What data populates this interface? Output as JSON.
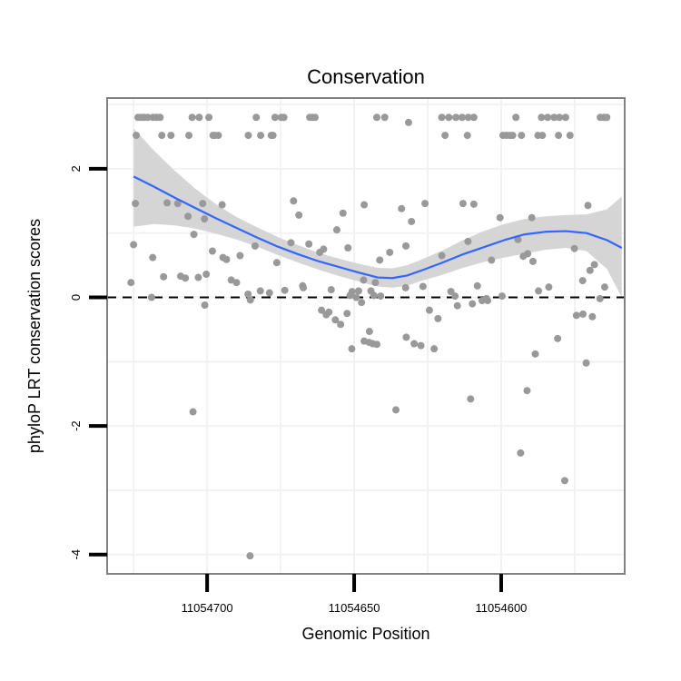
{
  "chart_data": {
    "type": "scatter",
    "title": "Conservation",
    "xlabel": "Genomic Position",
    "ylabel": "phyloP LRT conservation scores",
    "xlim": [
      11054734.0,
      11054558.0
    ],
    "ylim": [
      -4.3,
      3.1
    ],
    "x_reversed": true,
    "x_ticks": [
      11054700,
      11054650,
      11054600
    ],
    "x_tick_labels": [
      "11054700",
      "11054650",
      "11054600"
    ],
    "y_ticks": [
      2,
      0,
      -2,
      -4
    ],
    "y_tick_labels": [
      "2",
      "0",
      "-2",
      "-4"
    ],
    "grid": true,
    "reference_line": {
      "y": 0,
      "style": "dashed",
      "color": "#000000"
    },
    "point_color": "#999999",
    "smooth_color": "#3366FF",
    "ribbon_color": "#D3D3D3",
    "points": [
      [
        11054723.5,
        2.8
      ],
      [
        11054722.3,
        2.8
      ],
      [
        11054721.4,
        2.8
      ],
      [
        11054720.2,
        2.8
      ],
      [
        11054718.4,
        2.8
      ],
      [
        11054717.2,
        2.8
      ],
      [
        11054716.0,
        2.8
      ],
      [
        11054705.1,
        2.8
      ],
      [
        11054702.7,
        2.8
      ],
      [
        11054699.4,
        2.8
      ],
      [
        11054683.3,
        2.8
      ],
      [
        11054676.9,
        2.8
      ],
      [
        11054674.8,
        2.8
      ],
      [
        11054673.9,
        2.8
      ],
      [
        11054665.1,
        2.8
      ],
      [
        11054664.2,
        2.8
      ],
      [
        11054663.3,
        2.8
      ],
      [
        11054642.3,
        2.8
      ],
      [
        11054639.6,
        2.8
      ],
      [
        11054620.2,
        2.8
      ],
      [
        11054617.8,
        2.8
      ],
      [
        11054615.4,
        2.8
      ],
      [
        11054613.3,
        2.8
      ],
      [
        11054611.2,
        2.8
      ],
      [
        11054609.3,
        2.8
      ],
      [
        11054595.0,
        2.8
      ],
      [
        11054586.3,
        2.8
      ],
      [
        11054584.2,
        2.8
      ],
      [
        11054582.0,
        2.8
      ],
      [
        11054580.2,
        2.8
      ],
      [
        11054578.1,
        2.8
      ],
      [
        11054566.3,
        2.8
      ],
      [
        11054565.0,
        2.8
      ],
      [
        11054564.1,
        2.8
      ],
      [
        11054724.1,
        2.52
      ],
      [
        11054715.4,
        2.52
      ],
      [
        11054712.3,
        2.52
      ],
      [
        11054706.2,
        2.52
      ],
      [
        11054698.0,
        2.52
      ],
      [
        11054697.4,
        2.52
      ],
      [
        11054696.2,
        2.52
      ],
      [
        11054686.0,
        2.52
      ],
      [
        11054681.8,
        2.52
      ],
      [
        11054678.2,
        2.52
      ],
      [
        11054677.6,
        2.52
      ],
      [
        11054619.1,
        2.52
      ],
      [
        11054611.5,
        2.52
      ],
      [
        11054599.4,
        2.52
      ],
      [
        11054598.2,
        2.52
      ],
      [
        11054597.0,
        2.52
      ],
      [
        11054596.1,
        2.52
      ],
      [
        11054593.1,
        2.52
      ],
      [
        11054587.5,
        2.52
      ],
      [
        11054586.0,
        2.52
      ],
      [
        11054580.5,
        2.52
      ],
      [
        11054576.6,
        2.52
      ],
      [
        11054631.5,
        2.72
      ],
      [
        11054724.4,
        1.46
      ],
      [
        11054713.6,
        1.47
      ],
      [
        11054710.0,
        1.46
      ],
      [
        11054701.5,
        1.46
      ],
      [
        11054694.9,
        1.44
      ],
      [
        11054670.6,
        1.5
      ],
      [
        11054646.6,
        1.44
      ],
      [
        11054633.9,
        1.38
      ],
      [
        11054625.9,
        1.46
      ],
      [
        11054613.0,
        1.46
      ],
      [
        11054609.3,
        1.45
      ],
      [
        11054600.4,
        1.24
      ],
      [
        11054570.5,
        1.43
      ],
      [
        11054706.5,
        1.26
      ],
      [
        11054700.9,
        1.22
      ],
      [
        11054668.8,
        1.28
      ],
      [
        11054653.8,
        1.31
      ],
      [
        11054630.5,
        1.18
      ],
      [
        11054589.6,
        1.24
      ],
      [
        11054655.9,
        1.05
      ],
      [
        11054725.0,
        0.82
      ],
      [
        11054718.5,
        0.62
      ],
      [
        11054709.0,
        0.33
      ],
      [
        11054704.5,
        0.98
      ],
      [
        11054703.0,
        0.31
      ],
      [
        11054698.2,
        0.72
      ],
      [
        11054694.6,
        0.62
      ],
      [
        11054693.4,
        0.59
      ],
      [
        11054691.8,
        0.27
      ],
      [
        11054688.8,
        0.65
      ],
      [
        11054683.7,
        0.8
      ],
      [
        11054678.8,
        0.07
      ],
      [
        11054676.3,
        0.54
      ],
      [
        11054671.5,
        0.85
      ],
      [
        11054665.4,
        0.83
      ],
      [
        11054661.7,
        0.7
      ],
      [
        11054660.4,
        0.75
      ],
      [
        11054652.1,
        0.77
      ],
      [
        11054642.8,
        0.23
      ],
      [
        11054641.3,
        0.58
      ],
      [
        11054637.9,
        0.7
      ],
      [
        11054632.4,
        0.8
      ],
      [
        11054620.2,
        0.65
      ],
      [
        11054611.3,
        0.87
      ],
      [
        11054603.3,
        0.58
      ],
      [
        11054592.5,
        0.64
      ],
      [
        11054591.0,
        0.68
      ],
      [
        11054589.2,
        0.56
      ],
      [
        11054575.1,
        0.76
      ],
      [
        11054572.3,
        0.26
      ],
      [
        11054569.8,
        0.42
      ],
      [
        11054568.3,
        0.51
      ],
      [
        11054594.3,
        0.9
      ],
      [
        11054626.6,
        0.17
      ],
      [
        11054608.1,
        0.18
      ],
      [
        11054667.3,
        0.15
      ],
      [
        11054725.9,
        0.23
      ],
      [
        11054714.8,
        0.32
      ],
      [
        11054707.4,
        0.3
      ],
      [
        11054700.3,
        0.36
      ],
      [
        11054690.0,
        0.23
      ],
      [
        11054681.9,
        0.1
      ],
      [
        11054686.1,
        0.05
      ],
      [
        11054667.5,
        0.18
      ],
      [
        11054657.8,
        0.12
      ],
      [
        11054651.4,
        0.03
      ],
      [
        11054650.7,
        0.09
      ],
      [
        11054646.8,
        0.27
      ],
      [
        11054644.3,
        0.1
      ],
      [
        11054643.3,
        0.03
      ],
      [
        11054641.0,
        0.02
      ],
      [
        11054617.1,
        0.09
      ],
      [
        11054587.3,
        0.1
      ],
      [
        11054583.8,
        0.16
      ],
      [
        11054564.8,
        0.16
      ],
      [
        11054718.9,
        0.0
      ],
      [
        11054648.5,
        0.1
      ],
      [
        11054673.6,
        0.11
      ],
      [
        11054604.6,
        -0.05
      ],
      [
        11054700.8,
        -0.12
      ],
      [
        11054685.3,
        -0.04
      ],
      [
        11054661.1,
        -0.2
      ],
      [
        11054659.5,
        -0.27
      ],
      [
        11054658.6,
        -0.23
      ],
      [
        11054656.4,
        -0.35
      ],
      [
        11054654.6,
        -0.42
      ],
      [
        11054652.4,
        -0.25
      ],
      [
        11054649.3,
        0.0
      ],
      [
        11054632.5,
        0.15
      ],
      [
        11054624.4,
        -0.2
      ],
      [
        11054621.5,
        -0.33
      ],
      [
        11054614.9,
        -0.13
      ],
      [
        11054609.8,
        -0.1
      ],
      [
        11054606.5,
        -0.05
      ],
      [
        11054574.4,
        -0.28
      ],
      [
        11054572.2,
        -0.26
      ],
      [
        11054569.0,
        -0.3
      ],
      [
        11054566.4,
        -0.02
      ],
      [
        11054647.5,
        -0.08
      ],
      [
        11054605.0,
        -0.02
      ],
      [
        11054615.7,
        0.02
      ],
      [
        11054599.7,
        0.02
      ],
      [
        11054644.8,
        -0.53
      ],
      [
        11054632.3,
        -0.62
      ],
      [
        11054629.6,
        -0.72
      ],
      [
        11054622.8,
        -0.8
      ],
      [
        11054650.8,
        -0.8
      ],
      [
        11054646.6,
        -0.68
      ],
      [
        11054644.9,
        -0.7
      ],
      [
        11054643.7,
        -0.72
      ],
      [
        11054642.3,
        -0.73
      ],
      [
        11054627.3,
        -0.75
      ],
      [
        11054580.8,
        -0.64
      ],
      [
        11054588.4,
        -0.88
      ],
      [
        11054704.8,
        -1.78
      ],
      [
        11054635.8,
        -1.75
      ],
      [
        11054610.4,
        -1.58
      ],
      [
        11054591.2,
        -1.45
      ],
      [
        11054593.4,
        -2.42
      ],
      [
        11054578.4,
        -2.85
      ],
      [
        11054685.4,
        -4.02
      ],
      [
        11054571.1,
        -1.02
      ]
    ],
    "smooth_line": [
      [
        11054725.0,
        1.88
      ],
      [
        11054718.0,
        1.72
      ],
      [
        11054711.0,
        1.55
      ],
      [
        11054704.0,
        1.39
      ],
      [
        11054697.0,
        1.23
      ],
      [
        11054690.0,
        1.08
      ],
      [
        11054683.0,
        0.93
      ],
      [
        11054676.0,
        0.79
      ],
      [
        11054669.0,
        0.67
      ],
      [
        11054662.0,
        0.56
      ],
      [
        11054655.0,
        0.47
      ],
      [
        11054648.0,
        0.38
      ],
      [
        11054642.0,
        0.31
      ],
      [
        11054637.0,
        0.3
      ],
      [
        11054632.0,
        0.34
      ],
      [
        11054627.0,
        0.42
      ],
      [
        11054620.0,
        0.54
      ],
      [
        11054613.0,
        0.67
      ],
      [
        11054606.0,
        0.78
      ],
      [
        11054599.0,
        0.89
      ],
      [
        11054592.0,
        0.98
      ],
      [
        11054585.0,
        1.02
      ],
      [
        11054578.0,
        1.03
      ],
      [
        11054571.0,
        1.0
      ],
      [
        11054564.0,
        0.89
      ],
      [
        11054559.0,
        0.77
      ]
    ],
    "ribbon_upper": [
      [
        11054725.0,
        2.63
      ],
      [
        11054718.0,
        2.28
      ],
      [
        11054711.0,
        1.97
      ],
      [
        11054704.0,
        1.69
      ],
      [
        11054697.0,
        1.45
      ],
      [
        11054690.0,
        1.25
      ],
      [
        11054683.0,
        1.09
      ],
      [
        11054676.0,
        0.94
      ],
      [
        11054669.0,
        0.81
      ],
      [
        11054662.0,
        0.69
      ],
      [
        11054655.0,
        0.6
      ],
      [
        11054648.0,
        0.52
      ],
      [
        11054642.0,
        0.46
      ],
      [
        11054637.0,
        0.45
      ],
      [
        11054632.0,
        0.5
      ],
      [
        11054627.0,
        0.59
      ],
      [
        11054620.0,
        0.73
      ],
      [
        11054613.0,
        0.89
      ],
      [
        11054606.0,
        1.03
      ],
      [
        11054599.0,
        1.14
      ],
      [
        11054592.0,
        1.22
      ],
      [
        11054585.0,
        1.26
      ],
      [
        11054578.0,
        1.28
      ],
      [
        11054571.0,
        1.29
      ],
      [
        11054564.0,
        1.37
      ],
      [
        11054559.0,
        1.57
      ]
    ],
    "ribbon_lower": [
      [
        11054725.0,
        1.1
      ],
      [
        11054718.0,
        1.14
      ],
      [
        11054711.0,
        1.12
      ],
      [
        11054704.0,
        1.07
      ],
      [
        11054697.0,
        0.99
      ],
      [
        11054690.0,
        0.9
      ],
      [
        11054683.0,
        0.79
      ],
      [
        11054676.0,
        0.66
      ],
      [
        11054669.0,
        0.54
      ],
      [
        11054662.0,
        0.43
      ],
      [
        11054655.0,
        0.33
      ],
      [
        11054648.0,
        0.24
      ],
      [
        11054642.0,
        0.17
      ],
      [
        11054637.0,
        0.15
      ],
      [
        11054632.0,
        0.18
      ],
      [
        11054627.0,
        0.26
      ],
      [
        11054620.0,
        0.35
      ],
      [
        11054613.0,
        0.46
      ],
      [
        11054606.0,
        0.55
      ],
      [
        11054599.0,
        0.62
      ],
      [
        11054592.0,
        0.68
      ],
      [
        11054585.0,
        0.74
      ],
      [
        11054578.0,
        0.77
      ],
      [
        11054571.0,
        0.72
      ],
      [
        11054564.0,
        0.44
      ],
      [
        11054559.0,
        0.0
      ]
    ]
  }
}
